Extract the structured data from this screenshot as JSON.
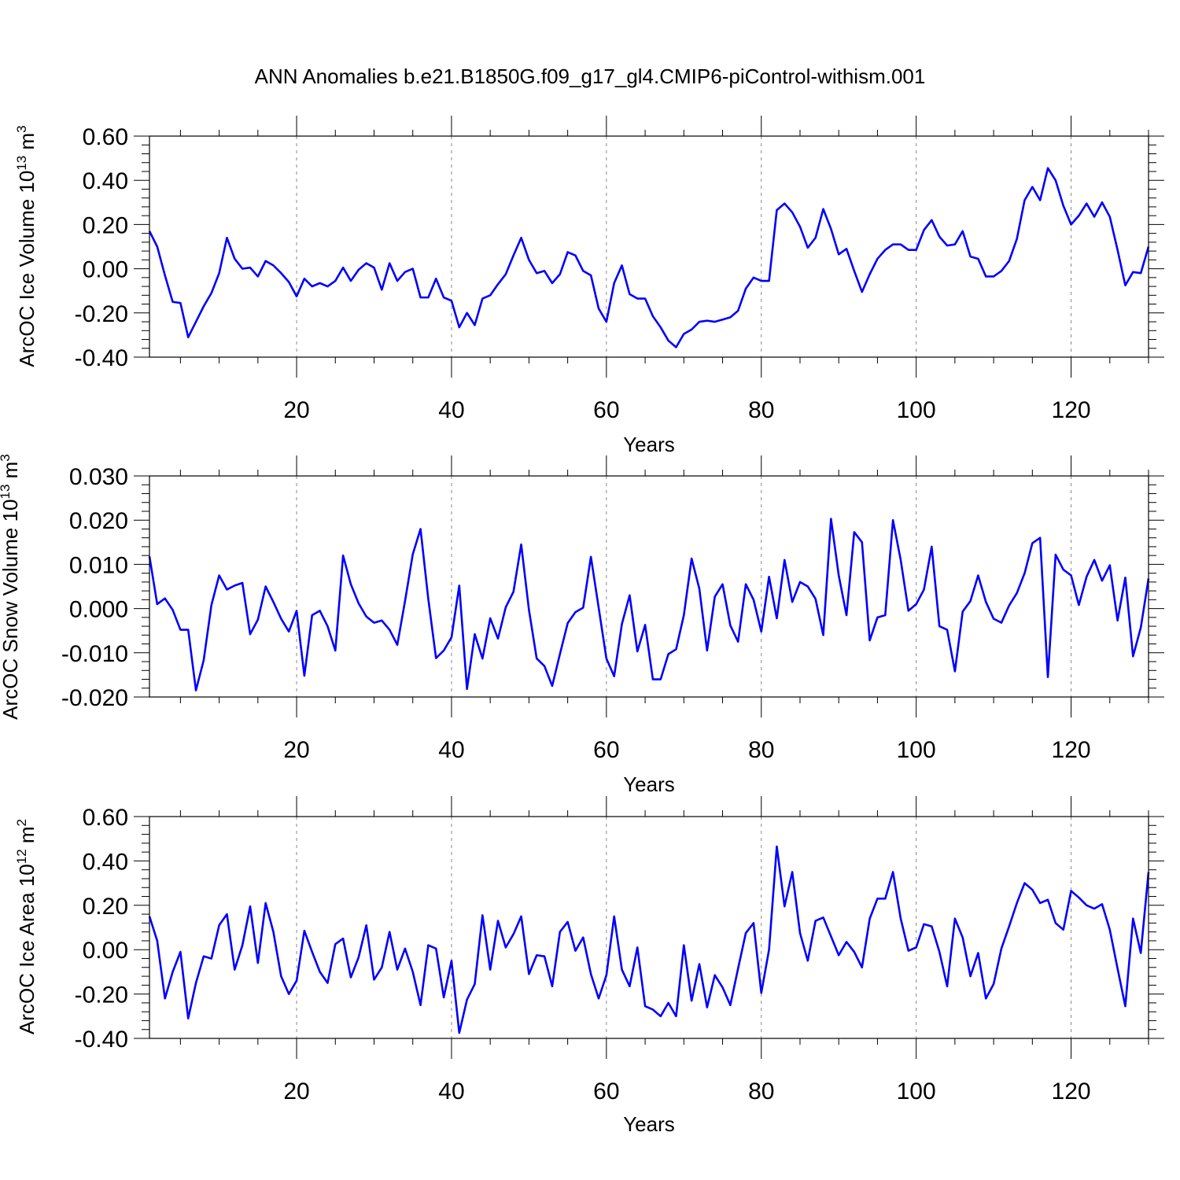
{
  "title": "ANN Anomalies b.e21.B1850G.f09_g17_gl4.CMIP6-piControl-withism.001",
  "line_color": "#0000ff",
  "chart_data": [
    {
      "type": "line",
      "ylabel_main": "ArcOC Ice Volume 10",
      "ylabel_sup": "13",
      "ylabel_unit": "m",
      "ylabel_unit_sup": "3",
      "xlabel": "Years",
      "xlim": [
        1,
        130
      ],
      "ylim": [
        -0.4,
        0.6
      ],
      "x_ticks": [
        20,
        40,
        60,
        80,
        100,
        120
      ],
      "x_tick_labels": [
        "20",
        "40",
        "60",
        "80",
        "100",
        "120"
      ],
      "y_ticks": [
        -0.4,
        -0.2,
        0.0,
        0.2,
        0.4,
        0.6
      ],
      "y_tick_labels": [
        "-0.40",
        "-0.20",
        "0.00",
        "0.20",
        "0.40",
        "0.60"
      ],
      "grid": "vertical dashed",
      "series": [
        {
          "name": "ArcOC Ice Volume",
          "x_start": 1,
          "values": [
            0.17,
            0.1,
            -0.03,
            -0.15,
            -0.155,
            -0.31,
            -0.24,
            -0.17,
            -0.11,
            -0.02,
            0.14,
            0.045,
            0.0,
            0.005,
            -0.035,
            0.035,
            0.015,
            -0.02,
            -0.06,
            -0.125,
            -0.045,
            -0.08,
            -0.065,
            -0.08,
            -0.055,
            0.005,
            -0.055,
            -0.005,
            0.025,
            0.005,
            -0.095,
            0.025,
            -0.055,
            -0.015,
            0.0,
            -0.13,
            -0.13,
            -0.045,
            -0.13,
            -0.145,
            -0.265,
            -0.2,
            -0.255,
            -0.135,
            -0.12,
            -0.07,
            -0.025,
            0.06,
            0.14,
            0.04,
            -0.02,
            -0.01,
            -0.065,
            -0.025,
            0.075,
            0.06,
            -0.01,
            -0.03,
            -0.18,
            -0.24,
            -0.065,
            0.015,
            -0.115,
            -0.135,
            -0.135,
            -0.215,
            -0.265,
            -0.325,
            -0.355,
            -0.295,
            -0.275,
            -0.24,
            -0.235,
            -0.24,
            -0.23,
            -0.22,
            -0.19,
            -0.09,
            -0.04,
            -0.055,
            -0.055,
            0.265,
            0.295,
            0.255,
            0.19,
            0.095,
            0.14,
            0.27,
            0.18,
            0.065,
            0.09,
            -0.01,
            -0.105,
            -0.025,
            0.045,
            0.085,
            0.11,
            0.11,
            0.085,
            0.085,
            0.175,
            0.22,
            0.145,
            0.105,
            0.11,
            0.17,
            0.055,
            0.045,
            -0.035,
            -0.035,
            -0.01,
            0.035,
            0.135,
            0.31,
            0.37,
            0.31,
            0.455,
            0.4,
            0.285,
            0.2,
            0.24,
            0.295,
            0.235,
            0.3,
            0.235,
            0.085,
            -0.075,
            -0.015,
            -0.02,
            0.1
          ]
        }
      ]
    },
    {
      "type": "line",
      "ylabel_main": "ArcOC Snow Volume 10",
      "ylabel_sup": "13",
      "ylabel_unit": "m",
      "ylabel_unit_sup": "3",
      "xlabel": "Years",
      "xlim": [
        1,
        130
      ],
      "ylim": [
        -0.02,
        0.03
      ],
      "x_ticks": [
        20,
        40,
        60,
        80,
        100,
        120
      ],
      "x_tick_labels": [
        "20",
        "40",
        "60",
        "80",
        "100",
        "120"
      ],
      "y_ticks": [
        -0.02,
        -0.01,
        0.0,
        0.01,
        0.02,
        0.03
      ],
      "y_tick_labels": [
        "-0.020",
        "-0.010",
        "0.000",
        "0.010",
        "0.020",
        "0.030"
      ],
      "grid": "vertical dashed",
      "series": [
        {
          "name": "ArcOC Snow Volume",
          "x_start": 1,
          "values": [
            0.0118,
            0.001,
            0.0023,
            -0.0003,
            -0.0048,
            -0.0048,
            -0.0185,
            -0.0117,
            0.0008,
            0.0075,
            0.0043,
            0.0052,
            0.0058,
            -0.0058,
            -0.0025,
            0.005,
            0.0015,
            -0.0023,
            -0.0052,
            -0.0005,
            -0.0152,
            -0.0015,
            -0.0005,
            -0.004,
            -0.0095,
            0.012,
            0.0055,
            0.0012,
            -0.0018,
            -0.0032,
            -0.0027,
            -0.0048,
            -0.0082,
            0.0017,
            0.0123,
            0.018,
            0.0022,
            -0.0112,
            -0.0095,
            -0.0065,
            0.0052,
            -0.0182,
            -0.0058,
            -0.0113,
            -0.0022,
            -0.0068,
            0.0003,
            0.0038,
            0.0145,
            -0.0003,
            -0.0113,
            -0.013,
            -0.0175,
            -0.0103,
            -0.0033,
            -0.0008,
            0.0002,
            0.0117,
            0.0002,
            -0.0113,
            -0.0153,
            -0.0035,
            0.003,
            -0.0097,
            -0.0037,
            -0.016,
            -0.016,
            -0.0103,
            -0.0092,
            -0.0015,
            0.0113,
            0.0045,
            -0.0095,
            0.0027,
            0.0055,
            -0.0038,
            -0.0075,
            0.0055,
            0.002,
            -0.0052,
            0.0072,
            -0.0022,
            0.011,
            0.0015,
            0.006,
            0.005,
            0.0022,
            -0.006,
            0.0203,
            0.0075,
            -0.0015,
            0.0173,
            0.015,
            -0.0072,
            -0.002,
            -0.0015,
            0.02,
            0.011,
            -0.0005,
            0.001,
            0.0043,
            0.014,
            -0.004,
            -0.0048,
            -0.0142,
            -0.0007,
            0.0017,
            0.0075,
            0.0015,
            -0.0023,
            -0.0032,
            0.0007,
            0.0035,
            0.008,
            0.0148,
            0.016,
            -0.0155,
            0.0122,
            0.0088,
            0.0075,
            0.0008,
            0.0072,
            0.011,
            0.0063,
            0.0098,
            -0.0027,
            0.007,
            -0.0108,
            -0.0043,
            0.0068
          ]
        }
      ]
    },
    {
      "type": "line",
      "ylabel_main": "ArcOC Ice Area 10",
      "ylabel_sup": "12",
      "ylabel_unit": "m",
      "ylabel_unit_sup": "2",
      "xlabel": "Years",
      "xlim": [
        1,
        130
      ],
      "ylim": [
        -0.4,
        0.6
      ],
      "x_ticks": [
        20,
        40,
        60,
        80,
        100,
        120
      ],
      "x_tick_labels": [
        "20",
        "40",
        "60",
        "80",
        "100",
        "120"
      ],
      "y_ticks": [
        -0.4,
        -0.2,
        0.0,
        0.2,
        0.4,
        0.6
      ],
      "y_tick_labels": [
        "-0.40",
        "-0.20",
        "0.00",
        "0.20",
        "0.40",
        "0.60"
      ],
      "grid": "vertical dashed",
      "series": [
        {
          "name": "ArcOC Ice Area",
          "x_start": 1,
          "values": [
            0.15,
            0.04,
            -0.22,
            -0.1,
            -0.01,
            -0.31,
            -0.15,
            -0.03,
            -0.04,
            0.11,
            0.16,
            -0.09,
            0.02,
            0.195,
            -0.06,
            0.21,
            0.08,
            -0.12,
            -0.2,
            -0.14,
            0.085,
            -0.01,
            -0.1,
            -0.15,
            0.025,
            0.05,
            -0.125,
            -0.035,
            0.11,
            -0.135,
            -0.08,
            0.08,
            -0.09,
            0.005,
            -0.1,
            -0.25,
            0.02,
            0.005,
            -0.215,
            -0.05,
            -0.375,
            -0.225,
            -0.155,
            0.155,
            -0.09,
            0.13,
            0.01,
            0.07,
            0.15,
            -0.11,
            -0.025,
            -0.03,
            -0.165,
            0.08,
            0.125,
            -0.005,
            0.055,
            -0.11,
            -0.22,
            -0.115,
            0.15,
            -0.09,
            -0.165,
            0.01,
            -0.255,
            -0.27,
            -0.3,
            -0.24,
            -0.3,
            0.02,
            -0.23,
            -0.065,
            -0.26,
            -0.115,
            -0.17,
            -0.25,
            -0.085,
            0.075,
            0.12,
            -0.195,
            0.0,
            0.465,
            0.195,
            0.35,
            0.075,
            -0.05,
            0.13,
            0.145,
            0.06,
            -0.025,
            0.035,
            -0.01,
            -0.08,
            0.14,
            0.23,
            0.23,
            0.35,
            0.14,
            -0.005,
            0.01,
            0.115,
            0.105,
            -0.01,
            -0.165,
            0.14,
            0.055,
            -0.12,
            -0.015,
            -0.22,
            -0.155,
            0.005,
            0.105,
            0.21,
            0.3,
            0.27,
            0.21,
            0.225,
            0.12,
            0.09,
            0.265,
            0.235,
            0.2,
            0.185,
            0.205,
            0.09,
            -0.085,
            -0.255,
            0.14,
            -0.015,
            0.35
          ]
        }
      ]
    }
  ]
}
